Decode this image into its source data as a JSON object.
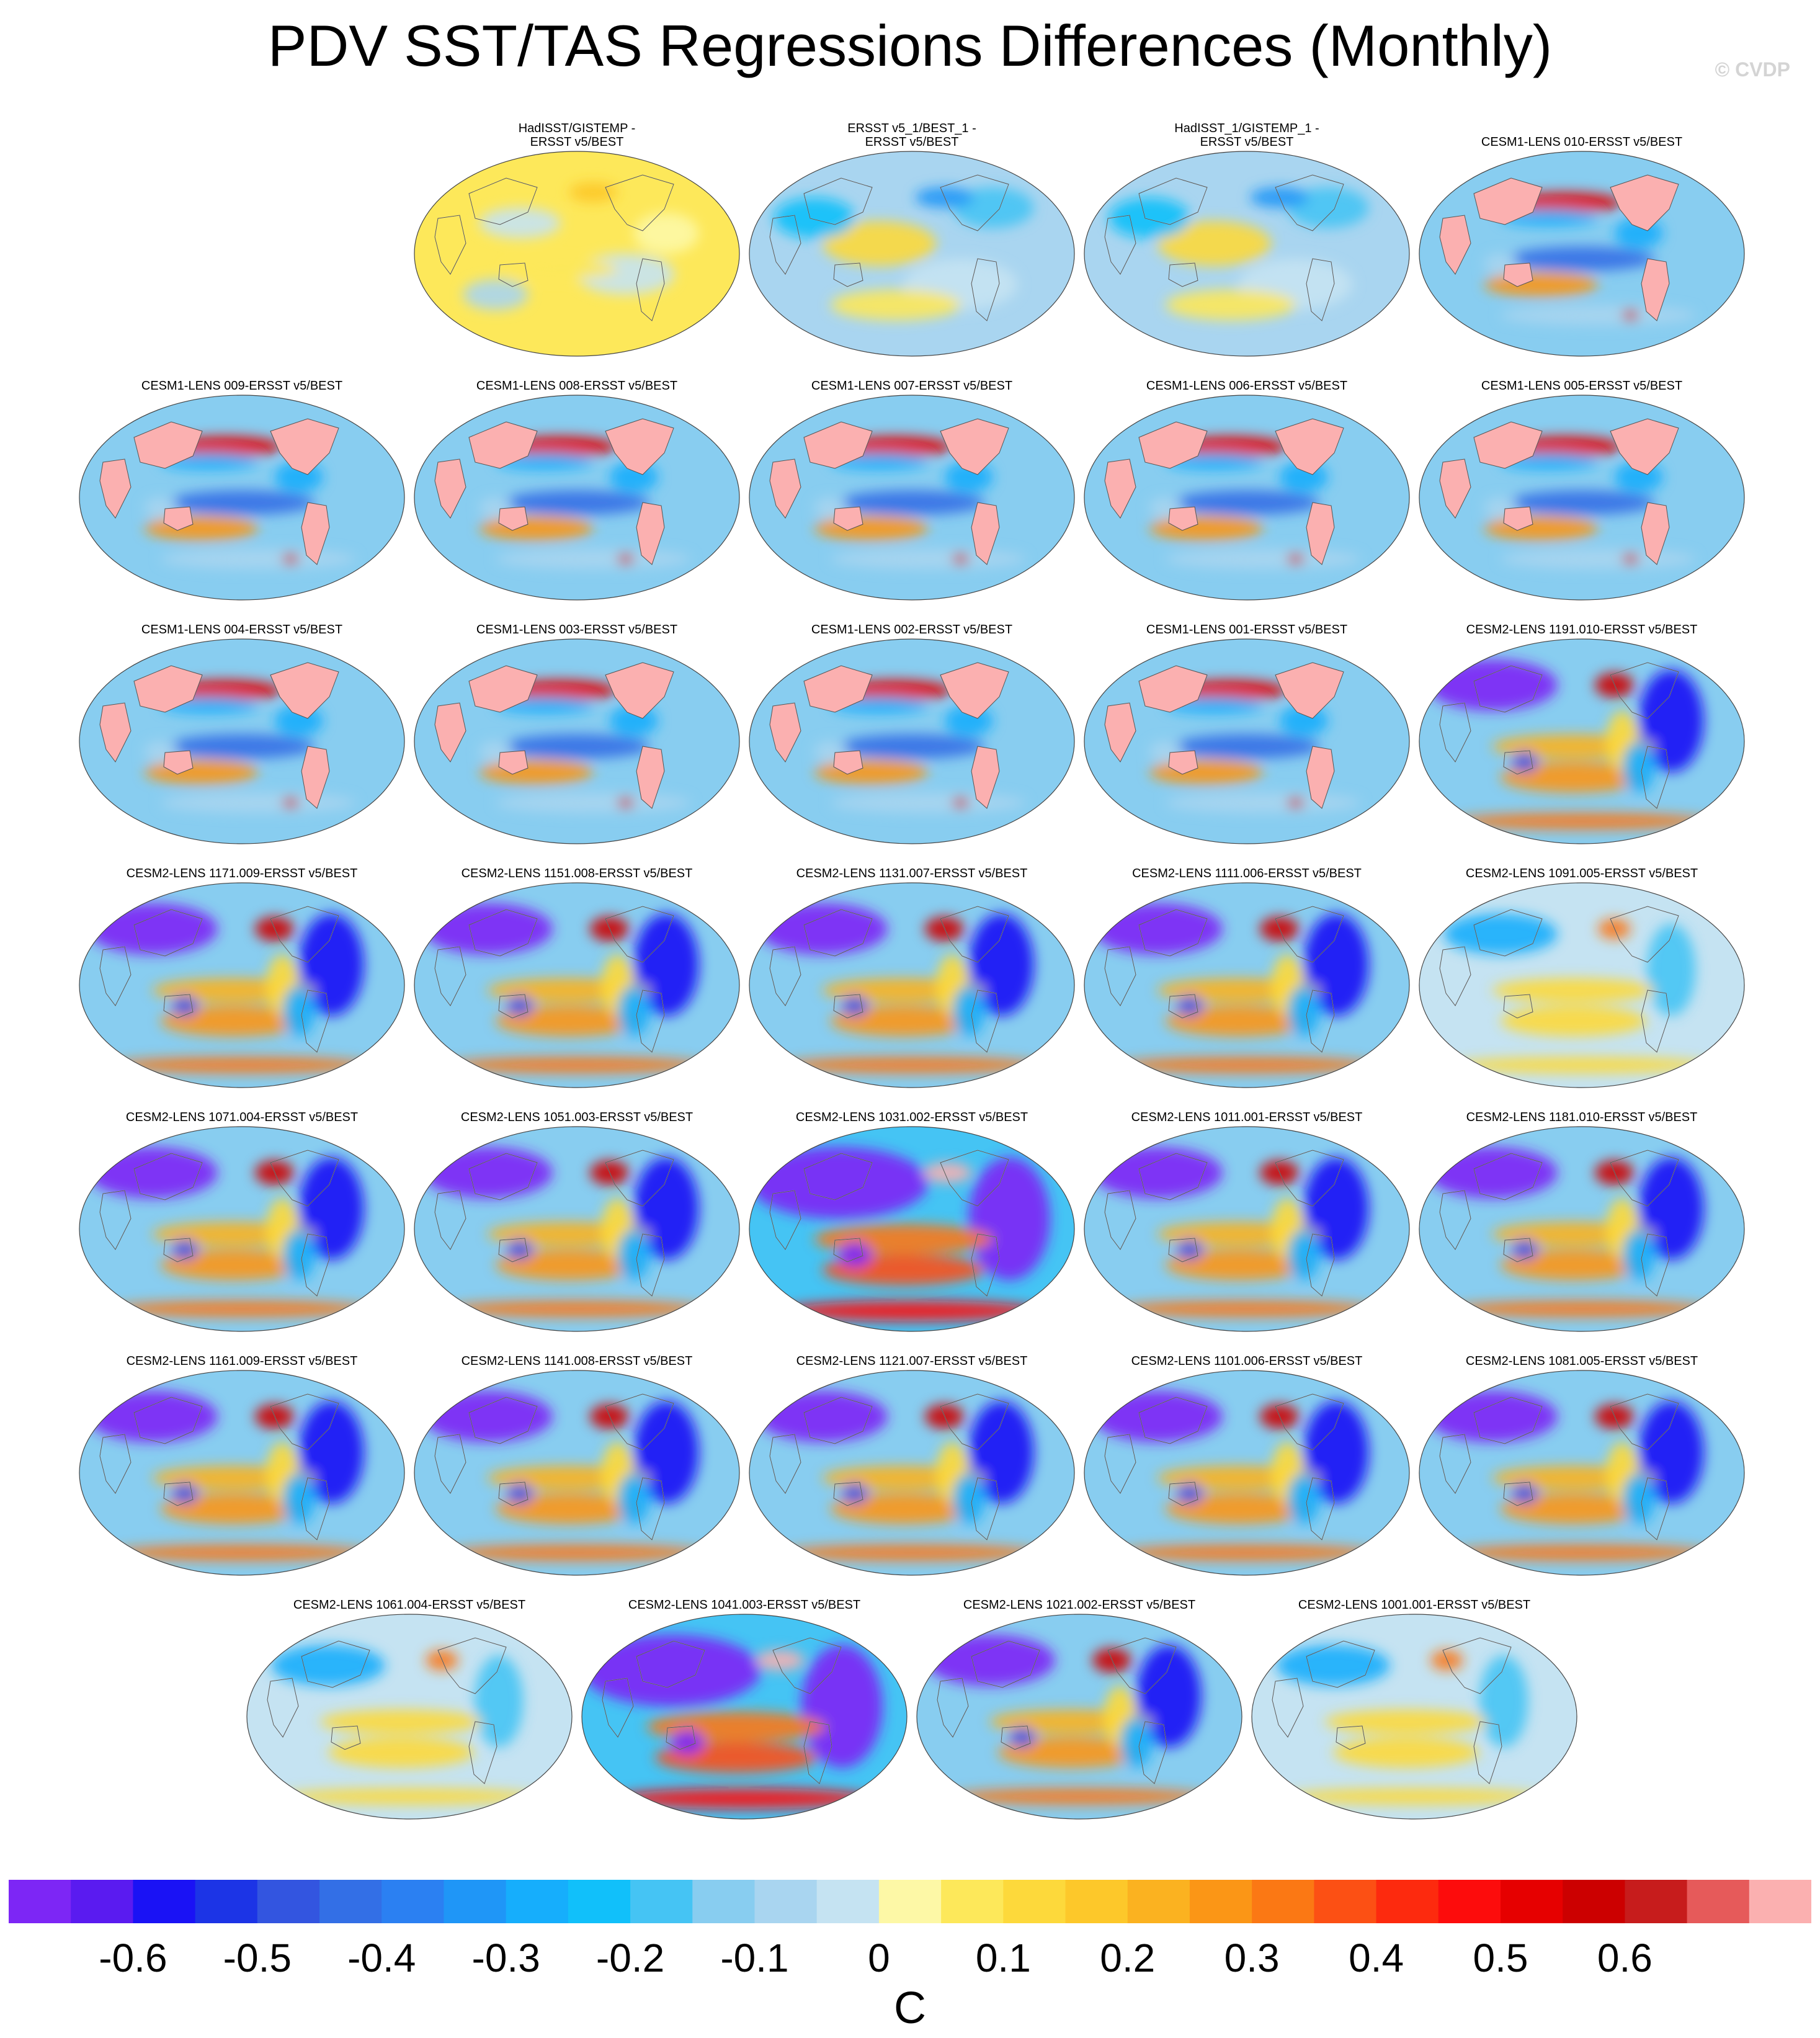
{
  "title": "PDV SST/TAS Regressions Differences (Monthly)",
  "watermark": "© CVDP",
  "panels": [
    {
      "title": "HadISST/GISTEMP -\nERSST v5/BEST",
      "pattern": "obs_weak"
    },
    {
      "title": "ERSST v5_1/BEST_1 -\nERSST v5/BEST",
      "pattern": "obs_blue"
    },
    {
      "title": "HadISST_1/GISTEMP_1 -\nERSST v5/BEST",
      "pattern": "obs_blue"
    },
    {
      "title": "CESM1-LENS 010-ERSST v5/BEST",
      "pattern": "cesm1"
    },
    {
      "title": "CESM1-LENS 009-ERSST v5/BEST",
      "pattern": "cesm1"
    },
    {
      "title": "CESM1-LENS 008-ERSST v5/BEST",
      "pattern": "cesm1"
    },
    {
      "title": "CESM1-LENS 007-ERSST v5/BEST",
      "pattern": "cesm1"
    },
    {
      "title": "CESM1-LENS 006-ERSST v5/BEST",
      "pattern": "cesm1"
    },
    {
      "title": "CESM1-LENS 005-ERSST v5/BEST",
      "pattern": "cesm1"
    },
    {
      "title": "CESM1-LENS 004-ERSST v5/BEST",
      "pattern": "cesm1"
    },
    {
      "title": "CESM1-LENS 003-ERSST v5/BEST",
      "pattern": "cesm1"
    },
    {
      "title": "CESM1-LENS 002-ERSST v5/BEST",
      "pattern": "cesm1"
    },
    {
      "title": "CESM1-LENS 001-ERSST v5/BEST",
      "pattern": "cesm1"
    },
    {
      "title": "CESM2-LENS 1191.010-ERSST v5/BEST",
      "pattern": "cesm2"
    },
    {
      "title": "CESM2-LENS 1171.009-ERSST v5/BEST",
      "pattern": "cesm2"
    },
    {
      "title": "CESM2-LENS 1151.008-ERSST v5/BEST",
      "pattern": "cesm2"
    },
    {
      "title": "CESM2-LENS 1131.007-ERSST v5/BEST",
      "pattern": "cesm2"
    },
    {
      "title": "CESM2-LENS 1111.006-ERSST v5/BEST",
      "pattern": "cesm2"
    },
    {
      "title": "CESM2-LENS 1091.005-ERSST v5/BEST",
      "pattern": "cesm2_weak"
    },
    {
      "title": "CESM2-LENS 1071.004-ERSST v5/BEST",
      "pattern": "cesm2"
    },
    {
      "title": "CESM2-LENS 1051.003-ERSST v5/BEST",
      "pattern": "cesm2"
    },
    {
      "title": "CESM2-LENS 1031.002-ERSST v5/BEST",
      "pattern": "cesm2_strong"
    },
    {
      "title": "CESM2-LENS 1011.001-ERSST v5/BEST",
      "pattern": "cesm2"
    },
    {
      "title": "CESM2-LENS 1181.010-ERSST v5/BEST",
      "pattern": "cesm2"
    },
    {
      "title": "CESM2-LENS 1161.009-ERSST v5/BEST",
      "pattern": "cesm2"
    },
    {
      "title": "CESM2-LENS 1141.008-ERSST v5/BEST",
      "pattern": "cesm2"
    },
    {
      "title": "CESM2-LENS 1121.007-ERSST v5/BEST",
      "pattern": "cesm2"
    },
    {
      "title": "CESM2-LENS 1101.006-ERSST v5/BEST",
      "pattern": "cesm2"
    },
    {
      "title": "CESM2-LENS 1081.005-ERSST v5/BEST",
      "pattern": "cesm2"
    },
    {
      "title": "CESM2-LENS 1061.004-ERSST v5/BEST",
      "pattern": "cesm2_weak"
    },
    {
      "title": "CESM2-LENS 1041.003-ERSST v5/BEST",
      "pattern": "cesm2_strong"
    },
    {
      "title": "CESM2-LENS 1021.002-ERSST v5/BEST",
      "pattern": "cesm2"
    },
    {
      "title": "CESM2-LENS 1001.001-ERSST v5/BEST",
      "pattern": "cesm2_weak"
    }
  ],
  "colorbar": {
    "colors": [
      "#7d26f5",
      "#5a1bf0",
      "#1a12f5",
      "#1c34e6",
      "#3355e0",
      "#336fe6",
      "#2b80f2",
      "#1f96f7",
      "#16aefc",
      "#11c0fa",
      "#45c4f4",
      "#88cdf0",
      "#a9d5f0",
      "#c5e3f2",
      "#fdf8a6",
      "#fde85a",
      "#fdd93b",
      "#fdc82a",
      "#fbb220",
      "#fb9616",
      "#fb7814",
      "#fc5014",
      "#fd2a0e",
      "#fd0c0c",
      "#e60000",
      "#cc0000",
      "#c71c1c",
      "#e65a5a",
      "#fbb0b0"
    ],
    "tick_labels": [
      "-0.6",
      "-0.5",
      "-0.4",
      "-0.3",
      "-0.2",
      "-0.1",
      "0",
      "0.1",
      "0.2",
      "0.3",
      "0.4",
      "0.5",
      "0.6"
    ],
    "units": "C"
  }
}
